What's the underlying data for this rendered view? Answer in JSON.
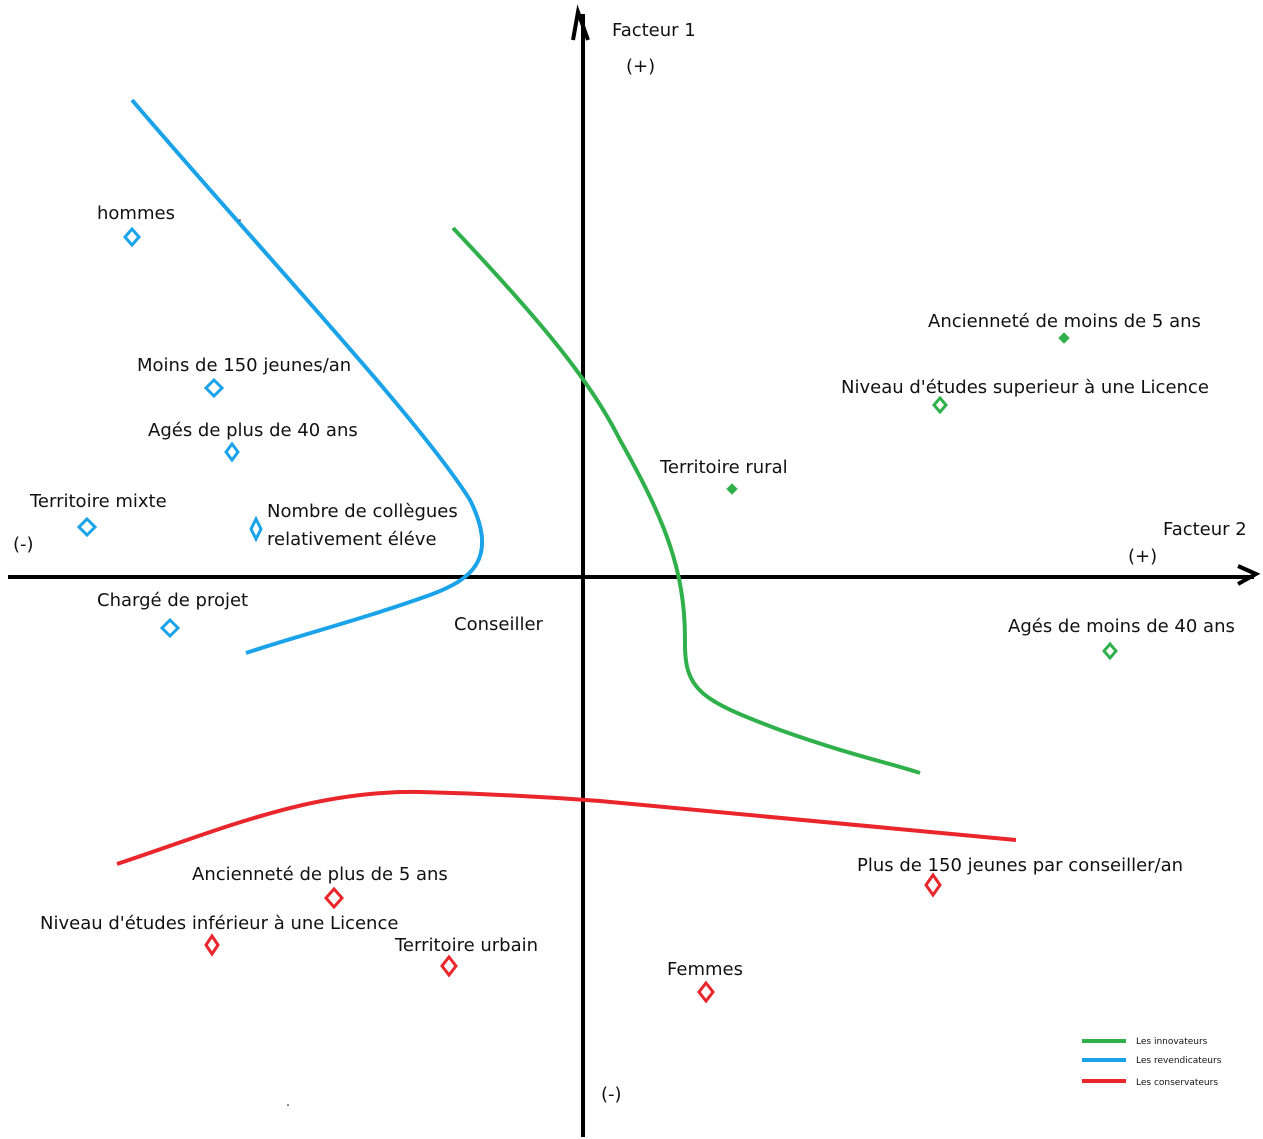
{
  "axes": {
    "vertical_title": "Facteur 1",
    "vertical_plus": "(+)",
    "vertical_minus": "(-)",
    "horizontal_title": "Facteur 2",
    "horizontal_plus": "(+)",
    "horizontal_minus": "(-)"
  },
  "center_label": "Conseiller",
  "colors": {
    "innovateurs": "#2fb04a",
    "revendicateurs": "#1aa3e8",
    "conservateurs": "#e8262b",
    "axis": "#000000"
  },
  "groups": [
    {
      "key": "revendicateurs",
      "legend": "Les revendicateurs",
      "items": [
        {
          "id": "hommes",
          "text": "hommes"
        },
        {
          "id": "moins-150",
          "text": "Moins de 150 jeunes/an"
        },
        {
          "id": "ages-plus-40",
          "text": "Agés de plus de 40 ans"
        },
        {
          "id": "territoire-mixte",
          "text": "Territoire mixte"
        },
        {
          "id": "nombre-collegues",
          "text": "Nombre de collègues",
          "text2": "relativement éléve"
        },
        {
          "id": "charge-projet",
          "text": "Chargé de projet"
        }
      ]
    },
    {
      "key": "innovateurs",
      "legend": "Les innovateurs",
      "items": [
        {
          "id": "anciennete-moins-5",
          "text": "Ancienneté de moins de 5 ans"
        },
        {
          "id": "niveau-sup-licence",
          "text": "Niveau d'études superieur à une Licence"
        },
        {
          "id": "territoire-rural",
          "text": "Territoire rural"
        },
        {
          "id": "ages-moins-40",
          "text": "Agés de moins de 40 ans"
        }
      ]
    },
    {
      "key": "conservateurs",
      "legend": "Les conservateurs",
      "items": [
        {
          "id": "anciennete-plus-5",
          "text": "Ancienneté de plus de 5 ans"
        },
        {
          "id": "niveau-inf-licence",
          "text": "Niveau d'études inférieur à une Licence"
        },
        {
          "id": "territoire-urbain",
          "text": "Territoire urbain"
        },
        {
          "id": "femmes",
          "text": "Femmes"
        },
        {
          "id": "plus-150",
          "text": "Plus de 150 jeunes par conseiller/an"
        }
      ]
    }
  ],
  "legend_order": [
    "innovateurs",
    "revendicateurs",
    "conservateurs"
  ]
}
